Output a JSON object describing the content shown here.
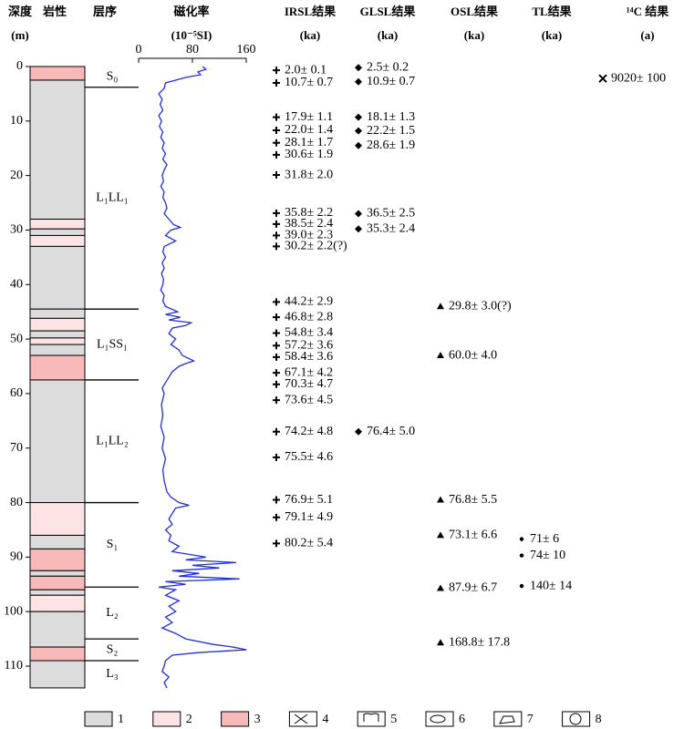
{
  "chart_data": {
    "type": "depth-profile",
    "columns": [
      {
        "title": "深度",
        "unit": "(m)"
      },
      {
        "title": "岩性"
      },
      {
        "title": "层序"
      },
      {
        "title": "磁化率",
        "unit": "(10⁻⁵SI)"
      },
      {
        "title": "IRSL结果",
        "unit": "(ka)"
      },
      {
        "title": "GLSL结果",
        "unit": "(ka)"
      },
      {
        "title": "OSL结果",
        "unit": "(ka)"
      },
      {
        "title": "TL结果",
        "unit": "(ka)"
      },
      {
        "title": "¹⁴C 结果",
        "unit": "(a)"
      }
    ],
    "ylim": [
      0,
      114
    ],
    "yticks": [
      0,
      10,
      20,
      30,
      40,
      50,
      60,
      70,
      80,
      90,
      100,
      110
    ],
    "legend": [
      {
        "label": "1",
        "color": "#dcdcdc"
      },
      {
        "label": "2",
        "color": "#fde3e3"
      },
      {
        "label": "3",
        "color": "#f8b9b9"
      },
      {
        "label": "4"
      },
      {
        "label": "5"
      },
      {
        "label": "6"
      },
      {
        "label": "7"
      },
      {
        "label": "8"
      }
    ],
    "layers": [
      {
        "top": 0,
        "bottom": 2.5,
        "class": "3"
      },
      {
        "top": 2.5,
        "bottom": 28,
        "class": "1"
      },
      {
        "top": 28,
        "bottom": 29.8,
        "class": "2"
      },
      {
        "top": 29.8,
        "bottom": 31,
        "class": "1"
      },
      {
        "top": 31,
        "bottom": 33,
        "class": "2"
      },
      {
        "top": 33,
        "bottom": 44.5,
        "class": "1"
      },
      {
        "top": 44.5,
        "bottom": 46.2,
        "class": "1"
      },
      {
        "top": 46.2,
        "bottom": 48.5,
        "class": "2"
      },
      {
        "top": 48.5,
        "bottom": 49.8,
        "class": "1"
      },
      {
        "top": 49.8,
        "bottom": 51,
        "class": "2"
      },
      {
        "top": 51,
        "bottom": 53,
        "class": "1"
      },
      {
        "top": 53,
        "bottom": 57.5,
        "class": "3"
      },
      {
        "top": 57.5,
        "bottom": 80,
        "class": "1"
      },
      {
        "top": 80,
        "bottom": 86,
        "class": "2"
      },
      {
        "top": 86,
        "bottom": 88.5,
        "class": "1"
      },
      {
        "top": 88.5,
        "bottom": 92.5,
        "class": "3"
      },
      {
        "top": 92.5,
        "bottom": 93.5,
        "class": "1"
      },
      {
        "top": 93.5,
        "bottom": 96,
        "class": "3"
      },
      {
        "top": 96,
        "bottom": 97,
        "class": "1"
      },
      {
        "top": 97,
        "bottom": 100,
        "class": "2"
      },
      {
        "top": 100,
        "bottom": 106.5,
        "class": "1"
      },
      {
        "top": 106.5,
        "bottom": 109,
        "class": "3"
      },
      {
        "top": 109,
        "bottom": 114,
        "class": "1"
      }
    ],
    "units": [
      {
        "name": "S₀",
        "top": 0,
        "bottom": 3.8
      },
      {
        "name": "L₁LL₁",
        "top": 3.8,
        "bottom": 44.5
      },
      {
        "name": "L₁SS₁",
        "top": 44.5,
        "bottom": 57.5
      },
      {
        "name": "L₁LL₂",
        "top": 57.5,
        "bottom": 80
      },
      {
        "name": "S₁",
        "top": 80,
        "bottom": 95.5
      },
      {
        "name": "L₂",
        "top": 95.5,
        "bottom": 105
      },
      {
        "name": "S₂",
        "top": 105,
        "bottom": 109
      },
      {
        "name": "L₃",
        "top": 109,
        "bottom": 114
      }
    ],
    "susceptibility": {
      "color": "#1f2fe0",
      "xlim": [
        0,
        160
      ],
      "xticks": [
        0,
        80,
        160
      ],
      "depth": [
        0,
        0.5,
        1,
        1.5,
        2,
        2.5,
        3,
        4,
        5,
        6,
        7,
        8,
        9,
        10,
        11,
        12,
        13,
        14,
        15,
        16,
        17,
        18,
        19,
        20,
        21,
        22,
        23,
        24,
        25,
        26,
        27,
        28,
        29,
        29.5,
        30,
        31,
        32,
        33,
        34,
        35,
        36,
        37,
        38,
        39,
        40,
        41,
        42,
        43,
        44,
        45,
        45.5,
        46,
        46.5,
        47,
        47.5,
        48,
        49,
        50,
        51,
        52,
        53,
        54,
        54.5,
        55,
        56,
        57,
        58,
        59,
        60,
        62,
        64,
        66,
        68,
        70,
        72,
        74,
        76,
        78,
        79,
        80,
        80.5,
        81,
        82,
        83,
        84,
        85,
        86,
        87,
        88,
        89,
        90,
        90.5,
        91,
        91.5,
        92,
        92.5,
        93,
        93.5,
        94,
        94.5,
        95,
        95.5,
        96,
        97,
        98,
        99,
        100,
        101,
        102,
        103,
        104,
        105,
        106,
        106.5,
        107,
        107.5,
        108,
        109,
        110,
        111,
        112,
        113,
        114
      ],
      "values": [
        95,
        100,
        88,
        92,
        70,
        55,
        40,
        38,
        30,
        35,
        32,
        36,
        30,
        34,
        31,
        36,
        33,
        38,
        35,
        40,
        36,
        42,
        38,
        35,
        37,
        33,
        38,
        36,
        40,
        42,
        38,
        45,
        52,
        62,
        48,
        40,
        55,
        38,
        36,
        40,
        35,
        38,
        34,
        37,
        36,
        33,
        38,
        36,
        40,
        58,
        40,
        62,
        45,
        78,
        70,
        50,
        45,
        55,
        48,
        60,
        65,
        82,
        70,
        60,
        50,
        45,
        40,
        35,
        38,
        34,
        36,
        33,
        38,
        35,
        40,
        36,
        38,
        42,
        48,
        60,
        75,
        55,
        50,
        45,
        50,
        40,
        48,
        45,
        60,
        50,
        100,
        70,
        145,
        80,
        120,
        50,
        90,
        60,
        150,
        40,
        70,
        30,
        55,
        40,
        60,
        45,
        55,
        40,
        50,
        35,
        55,
        70,
        110,
        140,
        160,
        90,
        50,
        40,
        38,
        35,
        45,
        38,
        42
      ]
    },
    "dating": [
      {
        "name": "IRSL",
        "marker": "plus",
        "samples": [
          {
            "depth": 0.7,
            "label": "2.0± 0.1"
          },
          {
            "depth": 3,
            "label": "10.7± 0.7"
          },
          {
            "depth": 9.3,
            "label": "17.9± 1.1"
          },
          {
            "depth": 11.7,
            "label": "22.0± 1.4"
          },
          {
            "depth": 14,
            "label": "28.1± 1.7"
          },
          {
            "depth": 16.2,
            "label": "30.6± 1.9"
          },
          {
            "depth": 19.9,
            "label": "31.8± 2.0"
          },
          {
            "depth": 26.9,
            "label": "35.8± 2.2"
          },
          {
            "depth": 28.9,
            "label": "38.5± 2.4"
          },
          {
            "depth": 31,
            "label": "39.0± 2.3"
          },
          {
            "depth": 33,
            "label": "30.2± 2.2(?)"
          },
          {
            "depth": 43.2,
            "label": "44.2± 2.9"
          },
          {
            "depth": 46,
            "label": "46.8± 2.8"
          },
          {
            "depth": 48.9,
            "label": "54.8± 3.4"
          },
          {
            "depth": 51.2,
            "label": "57.2± 3.6"
          },
          {
            "depth": 53.3,
            "label": "58.4± 3.6"
          },
          {
            "depth": 56.2,
            "label": "67.1± 4.2"
          },
          {
            "depth": 58.3,
            "label": "70.3± 4.7"
          },
          {
            "depth": 61.2,
            "label": "73.6± 4.5"
          },
          {
            "depth": 67,
            "label": "74.2± 4.8"
          },
          {
            "depth": 71.7,
            "label": "75.5± 4.6"
          },
          {
            "depth": 79.5,
            "label": "76.9± 5.1"
          },
          {
            "depth": 82.7,
            "label": "79.1± 4.9"
          },
          {
            "depth": 87.5,
            "label": "80.2± 5.4"
          }
        ]
      },
      {
        "name": "GLSL",
        "marker": "diamond",
        "samples": [
          {
            "depth": 0.2,
            "label": "2.5± 0.2"
          },
          {
            "depth": 2.8,
            "label": "10.9± 0.7"
          },
          {
            "depth": 9.3,
            "label": "18.1± 1.3"
          },
          {
            "depth": 11.8,
            "label": "22.2± 1.5"
          },
          {
            "depth": 14.5,
            "label": "28.6± 1.9"
          },
          {
            "depth": 27,
            "label": "36.5± 2.5"
          },
          {
            "depth": 29.8,
            "label": "35.3± 2.4"
          },
          {
            "depth": 67,
            "label": "76.4± 5.0"
          }
        ]
      },
      {
        "name": "OSL",
        "marker": "triangle",
        "samples": [
          {
            "depth": 44,
            "label": "29.8± 3.0(?)"
          },
          {
            "depth": 53,
            "label": "60.0± 4.0"
          },
          {
            "depth": 79.5,
            "label": "76.8± 5.5"
          },
          {
            "depth": 86,
            "label": "73.1± 6.6"
          },
          {
            "depth": 95.7,
            "label": "87.9± 6.7"
          },
          {
            "depth": 105.7,
            "label": "168.8± 17.8"
          }
        ]
      },
      {
        "name": "TL",
        "marker": "dot",
        "samples": [
          {
            "depth": 86.7,
            "label": "71± 6"
          },
          {
            "depth": 89.7,
            "label": "74± 10"
          },
          {
            "depth": 95.3,
            "label": "140± 14"
          }
        ]
      },
      {
        "name": "14C",
        "marker": "cross",
        "samples": [
          {
            "depth": 2.2,
            "label": "9020± 100"
          }
        ]
      }
    ]
  }
}
